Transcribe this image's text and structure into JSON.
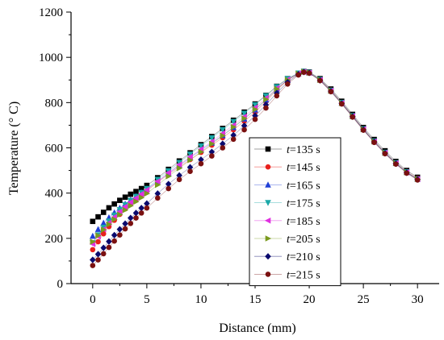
{
  "chart_data": {
    "type": "scatter",
    "xlabel": "Distance (mm)",
    "ylabel": "Temperature (° C)",
    "xlim": [
      -2,
      32
    ],
    "ylim": [
      0,
      1200
    ],
    "xticks": [
      0,
      5,
      10,
      15,
      20,
      25,
      30
    ],
    "yticks": [
      0,
      200,
      400,
      600,
      800,
      1000,
      1200
    ],
    "grid": false,
    "legend_position": "center-right",
    "series": [
      {
        "name": "t=135 s",
        "prefix": "t",
        "suffix": "=135 s",
        "color": "#000000",
        "marker": "square",
        "x": [
          0,
          0.5,
          1,
          1.5,
          2,
          2.5,
          3,
          3.5,
          4,
          4.5,
          5,
          6,
          7,
          8,
          9,
          10,
          11,
          12,
          13,
          14,
          15,
          16,
          17,
          18,
          19,
          19.5,
          20,
          21,
          22,
          23,
          24,
          25,
          26,
          27,
          28,
          29,
          30
        ],
        "y": [
          275,
          295,
          315,
          335,
          352,
          368,
          382,
          395,
          407,
          420,
          434,
          468,
          505,
          542,
          578,
          614,
          650,
          686,
          722,
          758,
          794,
          832,
          872,
          906,
          930,
          938,
          935,
          906,
          860,
          806,
          748,
          690,
          637,
          587,
          540,
          500,
          470
        ]
      },
      {
        "name": "t=145 s",
        "prefix": "t",
        "suffix": "=145 s",
        "color": "#e8201c",
        "marker": "circle",
        "x": [
          0,
          0.5,
          1,
          1.5,
          2,
          2.5,
          3,
          3.5,
          4,
          4.5,
          5,
          6,
          7,
          8,
          9,
          10,
          11,
          12,
          13,
          14,
          15,
          16,
          17,
          18,
          19,
          19.5,
          20,
          21,
          22,
          23,
          24,
          25,
          26,
          27,
          28,
          29,
          30
        ],
        "y": [
          150,
          185,
          220,
          252,
          280,
          306,
          330,
          352,
          372,
          392,
          410,
          448,
          483,
          516,
          548,
          580,
          612,
          645,
          680,
          718,
          758,
          805,
          855,
          898,
          928,
          936,
          932,
          902,
          855,
          800,
          742,
          684,
          630,
          580,
          534,
          495,
          465
        ]
      },
      {
        "name": "t=165 s",
        "prefix": "t",
        "suffix": "=165 s",
        "color": "#1f3fd6",
        "marker": "triangle-up",
        "x": [
          0,
          0.5,
          1,
          1.5,
          2,
          2.5,
          3,
          3.5,
          4,
          4.5,
          5,
          6,
          7,
          8,
          9,
          10,
          11,
          12,
          13,
          14,
          15,
          16,
          17,
          18,
          19,
          19.5,
          20,
          21,
          22,
          23,
          24,
          25,
          26,
          27,
          28,
          29,
          30
        ],
        "y": [
          210,
          240,
          268,
          292,
          314,
          334,
          352,
          370,
          386,
          402,
          418,
          452,
          487,
          522,
          556,
          590,
          622,
          655,
          690,
          728,
          768,
          812,
          860,
          900,
          928,
          936,
          932,
          900,
          852,
          798,
          740,
          682,
          628,
          578,
          532,
          492,
          462
        ]
      },
      {
        "name": "t=175 s",
        "prefix": "t",
        "suffix": "=175 s",
        "color": "#1aa8a8",
        "marker": "triangle-down",
        "x": [
          0,
          0.5,
          1,
          1.5,
          2,
          2.5,
          3,
          3.5,
          4,
          4.5,
          5,
          6,
          7,
          8,
          9,
          10,
          11,
          12,
          13,
          14,
          15,
          16,
          17,
          18,
          19,
          19.5,
          20,
          21,
          22,
          23,
          24,
          25,
          26,
          27,
          28,
          29,
          30
        ],
        "y": [
          180,
          215,
          248,
          276,
          302,
          326,
          348,
          367,
          385,
          402,
          420,
          460,
          498,
          535,
          572,
          608,
          644,
          680,
          716,
          752,
          790,
          830,
          870,
          905,
          930,
          937,
          933,
          902,
          854,
          800,
          742,
          684,
          630,
          580,
          534,
          494,
          462
        ]
      },
      {
        "name": "t=185 s",
        "prefix": "t",
        "suffix": "=185 s",
        "color": "#e030e0",
        "marker": "triangle-left",
        "x": [
          0,
          0.5,
          1,
          1.5,
          2,
          2.5,
          3,
          3.5,
          4,
          4.5,
          5,
          6,
          7,
          8,
          9,
          10,
          11,
          12,
          13,
          14,
          15,
          16,
          17,
          18,
          19,
          19.5,
          20,
          21,
          22,
          23,
          24,
          25,
          26,
          27,
          28,
          29,
          30
        ],
        "y": [
          175,
          208,
          240,
          268,
          294,
          318,
          340,
          360,
          378,
          396,
          414,
          452,
          490,
          526,
          560,
          594,
          628,
          664,
          700,
          738,
          778,
          820,
          864,
          902,
          929,
          936,
          932,
          900,
          852,
          798,
          740,
          682,
          628,
          578,
          532,
          492,
          462
        ]
      },
      {
        "name": "t=205 s",
        "prefix": "t",
        "suffix": "=205 s",
        "color": "#7a9a1e",
        "marker": "triangle-right",
        "x": [
          0,
          0.5,
          1,
          1.5,
          2,
          2.5,
          3,
          3.5,
          4,
          4.5,
          5,
          6,
          7,
          8,
          9,
          10,
          11,
          12,
          13,
          14,
          15,
          16,
          17,
          18,
          19,
          19.5,
          20,
          21,
          22,
          23,
          24,
          25,
          26,
          27,
          28,
          29,
          30
        ],
        "y": [
          185,
          212,
          238,
          262,
          284,
          305,
          325,
          344,
          362,
          380,
          398,
          436,
          474,
          510,
          546,
          582,
          618,
          654,
          692,
          730,
          770,
          814,
          860,
          900,
          928,
          936,
          932,
          900,
          852,
          798,
          740,
          682,
          628,
          578,
          532,
          492,
          462
        ]
      },
      {
        "name": "t=210 s",
        "prefix": "t",
        "suffix": "=210 s",
        "color": "#0a0a6e",
        "marker": "diamond",
        "x": [
          0,
          0.5,
          1,
          1.5,
          2,
          2.5,
          3,
          3.5,
          4,
          4.5,
          5,
          6,
          7,
          8,
          9,
          10,
          11,
          12,
          13,
          14,
          15,
          16,
          17,
          18,
          19,
          19.5,
          20,
          21,
          22,
          23,
          24,
          25,
          26,
          27,
          28,
          29,
          30
        ],
        "y": [
          105,
          130,
          158,
          186,
          214,
          240,
          265,
          290,
          312,
          334,
          354,
          398,
          440,
          478,
          514,
          548,
          582,
          618,
          656,
          698,
          742,
          790,
          842,
          890,
          925,
          935,
          931,
          898,
          850,
          796,
          738,
          680,
          626,
          576,
          530,
          490,
          460
        ]
      },
      {
        "name": "t=215 s",
        "prefix": "t",
        "suffix": "=215 s",
        "color": "#7a1010",
        "marker": "circle",
        "x": [
          0,
          0.5,
          1,
          1.5,
          2,
          2.5,
          3,
          3.5,
          4,
          4.5,
          5,
          6,
          7,
          8,
          9,
          10,
          11,
          12,
          13,
          14,
          15,
          16,
          17,
          18,
          19,
          19.5,
          20,
          21,
          22,
          23,
          24,
          25,
          26,
          27,
          28,
          29,
          30
        ],
        "y": [
          80,
          105,
          132,
          160,
          188,
          215,
          242,
          266,
          290,
          312,
          334,
          378,
          420,
          460,
          496,
          530,
          564,
          600,
          638,
          680,
          726,
          776,
          830,
          882,
          922,
          934,
          930,
          897,
          848,
          794,
          736,
          678,
          624,
          574,
          528,
          488,
          458
        ]
      }
    ]
  }
}
